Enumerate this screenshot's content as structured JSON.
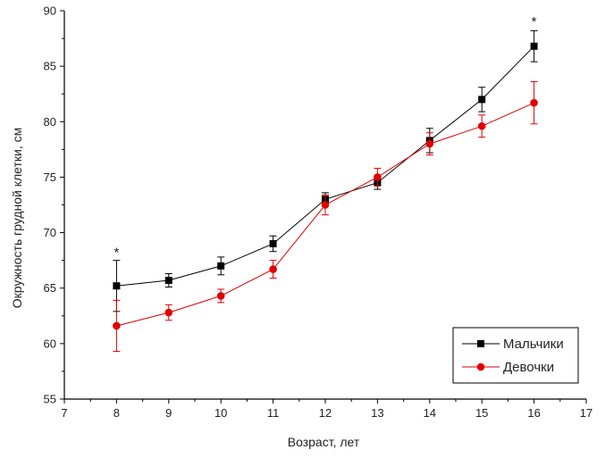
{
  "chart_data": {
    "type": "line",
    "title": "",
    "xlabel": "Возраст, лет",
    "ylabel": "Окружность грудной клетки, см",
    "xlim": [
      7,
      17
    ],
    "ylim": [
      55,
      90
    ],
    "xticks": [
      7,
      8,
      9,
      10,
      11,
      12,
      13,
      14,
      15,
      16,
      17
    ],
    "yticks": [
      55,
      60,
      65,
      70,
      75,
      80,
      85,
      90
    ],
    "x": [
      8,
      9,
      10,
      11,
      12,
      13,
      14,
      15,
      16
    ],
    "series": [
      {
        "name": "Мальчики",
        "color": "#000000",
        "marker": "square",
        "values": [
          65.2,
          65.7,
          67.0,
          69.0,
          73.0,
          74.5,
          78.3,
          82.0,
          86.8
        ],
        "errors": [
          2.3,
          0.6,
          0.8,
          0.7,
          0.6,
          0.6,
          1.1,
          1.1,
          1.4
        ]
      },
      {
        "name": "Девочки",
        "color": "#e00000",
        "marker": "circle",
        "values": [
          61.6,
          62.8,
          64.3,
          66.7,
          72.5,
          75.0,
          78.0,
          79.6,
          81.7
        ],
        "errors": [
          2.3,
          0.7,
          0.6,
          0.8,
          0.9,
          0.8,
          1.0,
          1.0,
          1.9
        ]
      }
    ],
    "annotations": [
      {
        "text": "*",
        "x": 8,
        "y": 68.3
      },
      {
        "text": "*",
        "x": 16,
        "y": 89.1
      }
    ],
    "legend_position": "bottom-right",
    "grid": false
  }
}
